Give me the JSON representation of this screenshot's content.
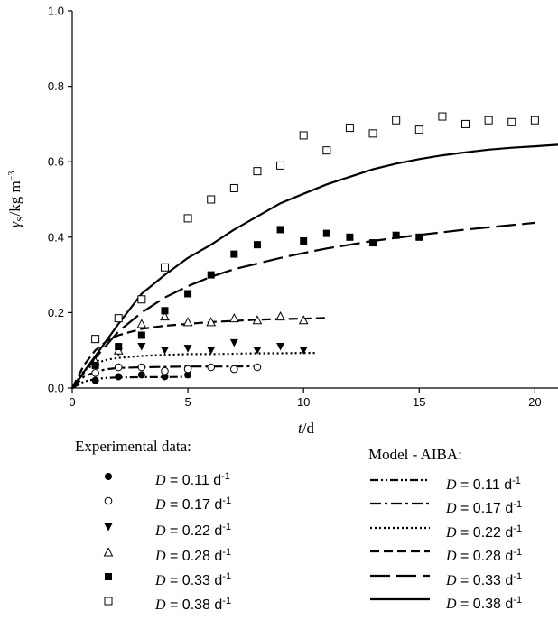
{
  "chart_data": {
    "type": "scatter",
    "xlabel_var": "t",
    "xlabel_unit": "/d",
    "ylabel_var": "γ",
    "ylabel_sub": "S",
    "ylabel_unit": "/kg m",
    "ylabel_exp": "−3",
    "xlim": [
      0,
      21
    ],
    "ylim": [
      0,
      1.0
    ],
    "xticks": [
      "0",
      "5",
      "10",
      "15",
      "20"
    ],
    "yticks": [
      "0.0",
      "0.2",
      "0.4",
      "0.6",
      "0.8",
      "1.0"
    ],
    "grid": false,
    "legend_experimental_title": "Experimental data:",
    "legend_model_title": "Model - AIBA:",
    "experimental": [
      {
        "name": "D = 0.11 d-1",
        "label_var": "D",
        "label_text": " = 0.11 d",
        "label_exp": "-1",
        "marker": "filled-circle",
        "points": [
          [
            1,
            0.02
          ],
          [
            2,
            0.03
          ],
          [
            3,
            0.035
          ],
          [
            4,
            0.03
          ],
          [
            5,
            0.035
          ]
        ]
      },
      {
        "name": "D = 0.17 d-1",
        "label_var": "D",
        "label_text": " = 0.17 d",
        "label_exp": "-1",
        "marker": "open-circle",
        "points": [
          [
            1,
            0.04
          ],
          [
            2,
            0.055
          ],
          [
            3,
            0.055
          ],
          [
            4,
            0.045
          ],
          [
            5,
            0.05
          ],
          [
            6,
            0.055
          ],
          [
            7,
            0.05
          ],
          [
            8,
            0.055
          ]
        ]
      },
      {
        "name": "D = 0.22 d-1",
        "label_var": "D",
        "label_text": " = 0.22 d",
        "label_exp": "-1",
        "marker": "filled-triangle-down",
        "points": [
          [
            1,
            0.065
          ],
          [
            2,
            0.095
          ],
          [
            3,
            0.11
          ],
          [
            4,
            0.1
          ],
          [
            5,
            0.105
          ],
          [
            6,
            0.1
          ],
          [
            7,
            0.12
          ],
          [
            8,
            0.1
          ],
          [
            9,
            0.11
          ],
          [
            10,
            0.1
          ]
        ]
      },
      {
        "name": "D = 0.28 d-1",
        "label_var": "D",
        "label_text": " = 0.28 d",
        "label_exp": "-1",
        "marker": "open-triangle-up",
        "points": [
          [
            1,
            0.07
          ],
          [
            2,
            0.1
          ],
          [
            3,
            0.17
          ],
          [
            4,
            0.19
          ],
          [
            5,
            0.175
          ],
          [
            6,
            0.175
          ],
          [
            7,
            0.185
          ],
          [
            8,
            0.18
          ],
          [
            9,
            0.19
          ],
          [
            10,
            0.18
          ]
        ]
      },
      {
        "name": "D = 0.33 d-1",
        "label_var": "D",
        "label_text": " = 0.33 d",
        "label_exp": "-1",
        "marker": "filled-square",
        "points": [
          [
            1,
            0.06
          ],
          [
            2,
            0.11
          ],
          [
            3,
            0.14
          ],
          [
            4,
            0.205
          ],
          [
            5,
            0.25
          ],
          [
            6,
            0.3
          ],
          [
            7,
            0.355
          ],
          [
            8,
            0.38
          ],
          [
            9,
            0.42
          ],
          [
            10,
            0.39
          ],
          [
            11,
            0.41
          ],
          [
            12,
            0.4
          ],
          [
            13,
            0.385
          ],
          [
            14,
            0.405
          ],
          [
            15,
            0.4
          ]
        ]
      },
      {
        "name": "D = 0.38 d-1",
        "label_var": "D",
        "label_text": " = 0.38 d",
        "label_exp": "-1",
        "marker": "open-square",
        "points": [
          [
            1,
            0.13
          ],
          [
            2,
            0.185
          ],
          [
            3,
            0.235
          ],
          [
            4,
            0.32
          ],
          [
            5,
            0.45
          ],
          [
            6,
            0.5
          ],
          [
            7,
            0.53
          ],
          [
            8,
            0.575
          ],
          [
            9,
            0.59
          ],
          [
            10,
            0.67
          ],
          [
            11,
            0.63
          ],
          [
            12,
            0.69
          ],
          [
            13,
            0.675
          ],
          [
            14,
            0.71
          ],
          [
            15,
            0.685
          ],
          [
            16,
            0.72
          ],
          [
            17,
            0.7
          ],
          [
            18,
            0.71
          ],
          [
            19,
            0.705
          ],
          [
            20,
            0.71
          ]
        ]
      }
    ],
    "model": [
      {
        "name": "D = 0.11 d-1",
        "label_var": "D",
        "label_text": " = 0.11 d",
        "label_exp": "-1",
        "dash": "9 3 2 3 2 3",
        "points": [
          [
            0,
            0
          ],
          [
            0.5,
            0.017
          ],
          [
            1,
            0.024
          ],
          [
            1.5,
            0.027
          ],
          [
            2,
            0.028
          ],
          [
            3,
            0.029
          ],
          [
            4,
            0.029
          ],
          [
            5,
            0.03
          ]
        ]
      },
      {
        "name": "D = 0.17 d-1",
        "label_var": "D",
        "label_text": " = 0.17 d",
        "label_exp": "-1",
        "dash": "12 4 3 4",
        "points": [
          [
            0,
            0
          ],
          [
            0.5,
            0.03
          ],
          [
            1,
            0.043
          ],
          [
            1.5,
            0.05
          ],
          [
            2,
            0.053
          ],
          [
            3,
            0.055
          ],
          [
            4,
            0.056
          ],
          [
            5,
            0.057
          ],
          [
            6,
            0.057
          ],
          [
            7,
            0.057
          ],
          [
            8,
            0.058
          ]
        ]
      },
      {
        "name": "D = 0.22 d-1",
        "label_var": "D",
        "label_text": " = 0.22 d",
        "label_exp": "-1",
        "dash": "2 3",
        "points": [
          [
            0,
            0
          ],
          [
            0.5,
            0.045
          ],
          [
            1,
            0.065
          ],
          [
            1.5,
            0.075
          ],
          [
            2,
            0.08
          ],
          [
            3,
            0.085
          ],
          [
            4,
            0.088
          ],
          [
            5,
            0.09
          ],
          [
            6,
            0.09
          ],
          [
            7,
            0.091
          ],
          [
            8,
            0.092
          ],
          [
            9,
            0.092
          ],
          [
            10,
            0.093
          ],
          [
            10.5,
            0.093
          ]
        ]
      },
      {
        "name": "D = 0.28 d-1",
        "label_var": "D",
        "label_text": " = 0.28 d",
        "label_exp": "-1",
        "dash": "10 5",
        "points": [
          [
            0,
            0
          ],
          [
            0.5,
            0.06
          ],
          [
            1,
            0.1
          ],
          [
            1.5,
            0.125
          ],
          [
            2,
            0.14
          ],
          [
            3,
            0.157
          ],
          [
            4,
            0.165
          ],
          [
            5,
            0.17
          ],
          [
            6,
            0.175
          ],
          [
            7,
            0.178
          ],
          [
            8,
            0.181
          ],
          [
            9,
            0.183
          ],
          [
            10,
            0.184
          ],
          [
            11,
            0.186
          ]
        ]
      },
      {
        "name": "D = 0.33 d-1",
        "label_var": "D",
        "label_text": " = 0.33 d",
        "label_exp": "-1",
        "dash": "22 7",
        "points": [
          [
            0,
            0
          ],
          [
            1,
            0.08
          ],
          [
            2,
            0.15
          ],
          [
            3,
            0.2
          ],
          [
            4,
            0.24
          ],
          [
            5,
            0.27
          ],
          [
            6,
            0.295
          ],
          [
            7,
            0.315
          ],
          [
            8,
            0.33
          ],
          [
            9,
            0.345
          ],
          [
            10,
            0.358
          ],
          [
            11,
            0.37
          ],
          [
            12,
            0.38
          ],
          [
            13,
            0.39
          ],
          [
            14,
            0.398
          ],
          [
            15,
            0.406
          ],
          [
            16,
            0.413
          ],
          [
            17,
            0.42
          ],
          [
            18,
            0.426
          ],
          [
            19,
            0.432
          ],
          [
            20,
            0.438
          ]
        ]
      },
      {
        "name": "D = 0.38 d-1",
        "label_var": "D",
        "label_text": " = 0.38 d",
        "label_exp": "-1",
        "dash": "",
        "points": [
          [
            0,
            0
          ],
          [
            1,
            0.085
          ],
          [
            2,
            0.17
          ],
          [
            3,
            0.25
          ],
          [
            4,
            0.3
          ],
          [
            5,
            0.345
          ],
          [
            6,
            0.38
          ],
          [
            7,
            0.42
          ],
          [
            8,
            0.455
          ],
          [
            9,
            0.49
          ],
          [
            10,
            0.515
          ],
          [
            11,
            0.54
          ],
          [
            12,
            0.56
          ],
          [
            13,
            0.58
          ],
          [
            14,
            0.595
          ],
          [
            15,
            0.607
          ],
          [
            16,
            0.617
          ],
          [
            17,
            0.625
          ],
          [
            18,
            0.632
          ],
          [
            19,
            0.637
          ],
          [
            20,
            0.641
          ],
          [
            21,
            0.645
          ]
        ]
      }
    ]
  }
}
